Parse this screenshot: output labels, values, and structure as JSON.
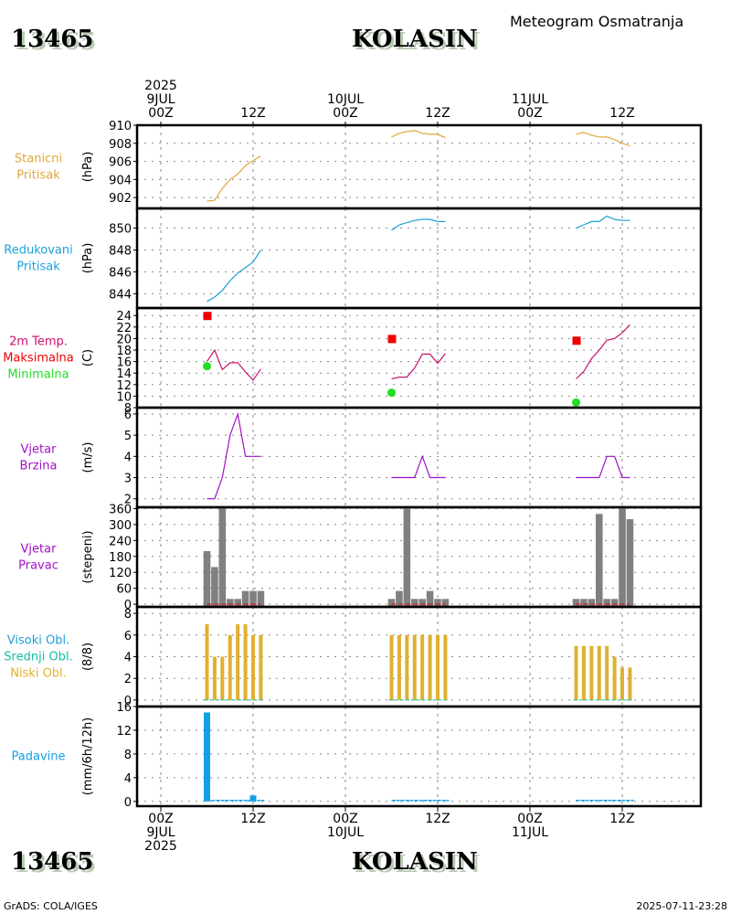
{
  "header": {
    "station_id": "13465",
    "station_name": "KOLASIN",
    "product": "Meteogram Osmatranja"
  },
  "footer": {
    "station_id": "13465",
    "station_name": "KOLASIN",
    "credit": "GrADS: COLA/IGES",
    "timestamp": "2025-07-11-23:28"
  },
  "time_axis": {
    "start": "2025-07-09T00Z",
    "end": "2025-07-12T06Z",
    "top_labels": [
      {
        "hour": 0,
        "lines": [
          "2025",
          "9JUL",
          "00Z"
        ]
      },
      {
        "hour": 12,
        "lines": [
          "12Z"
        ]
      },
      {
        "hour": 24,
        "lines": [
          "10JUL",
          "00Z"
        ]
      },
      {
        "hour": 36,
        "lines": [
          "12Z"
        ]
      },
      {
        "hour": 48,
        "lines": [
          "11JUL",
          "00Z"
        ]
      },
      {
        "hour": 60,
        "lines": [
          "12Z"
        ]
      }
    ],
    "bottom_labels": [
      {
        "hour": 0,
        "lines": [
          "00Z",
          "9JUL",
          "2025"
        ]
      },
      {
        "hour": 12,
        "lines": [
          "12Z"
        ]
      },
      {
        "hour": 24,
        "lines": [
          "00Z",
          "10JUL"
        ]
      },
      {
        "hour": 36,
        "lines": [
          "12Z"
        ]
      },
      {
        "hour": 48,
        "lines": [
          "00Z",
          "11JUL"
        ]
      },
      {
        "hour": 60,
        "lines": [
          "12Z"
        ]
      }
    ]
  },
  "colors": {
    "station_pressure": "#e0a83a",
    "reduced_pressure": "#1ea0d8",
    "temp": "#c8106e",
    "tmax": "#ee0000",
    "tmin": "#22dd22",
    "wind_speed": "#a010c8",
    "wind_dir": "#808080",
    "wind_dir_base": "#ee0000",
    "cloud_high": "#1ea0d8",
    "cloud_mid": "#10c0a0",
    "cloud_low": "#e0b030",
    "precip": "#10a0e8"
  },
  "chart_data": [
    {
      "type": "line",
      "id": "station_pressure",
      "title_lines": [
        "Stanicni",
        "Pritisak"
      ],
      "ylabel": "(hPa)",
      "ylim": [
        900.8,
        910
      ],
      "yticks": [
        902,
        904,
        906,
        908,
        910
      ],
      "color_key": "station_pressure",
      "segments": [
        {
          "hours": [
            6,
            7,
            8,
            9,
            10,
            11,
            12,
            13
          ],
          "values": [
            901.6,
            901.7,
            903.0,
            904.0,
            904.6,
            905.5,
            906.1,
            906.6
          ]
        },
        {
          "hours": [
            30,
            31,
            32,
            33,
            34,
            35,
            36,
            37
          ],
          "values": [
            908.7,
            909.1,
            909.3,
            909.4,
            909.1,
            909.0,
            909.0,
            908.6
          ]
        },
        {
          "hours": [
            54,
            55,
            56,
            57,
            58,
            59,
            60,
            61
          ],
          "values": [
            909.0,
            909.2,
            908.9,
            908.7,
            908.7,
            908.4,
            908.0,
            907.7
          ]
        }
      ]
    },
    {
      "type": "line",
      "id": "reduced_pressure",
      "title_lines": [
        "Redukovani",
        "Pritisak"
      ],
      "ylabel": "(hPa)",
      "ylim": [
        842.7,
        851.8
      ],
      "yticks": [
        844,
        846,
        848,
        850
      ],
      "color_key": "reduced_pressure",
      "segments": [
        {
          "hours": [
            6,
            7,
            8,
            9,
            10,
            11,
            12,
            13
          ],
          "values": [
            843.3,
            843.7,
            844.3,
            845.2,
            845.9,
            846.4,
            846.9,
            848.0
          ]
        },
        {
          "hours": [
            30,
            31,
            32,
            33,
            34,
            35,
            36,
            37
          ],
          "values": [
            849.8,
            850.3,
            850.5,
            850.7,
            850.8,
            850.8,
            850.6,
            850.6
          ]
        },
        {
          "hours": [
            54,
            55,
            56,
            57,
            58,
            59,
            60,
            61
          ],
          "values": [
            850.0,
            850.3,
            850.6,
            850.6,
            851.1,
            850.8,
            850.7,
            850.7
          ]
        }
      ]
    },
    {
      "type": "line",
      "id": "temperature",
      "title_lines": [
        "2m Temp.",
        "Maksimalna",
        "Minimalna"
      ],
      "title_color_keys": [
        "temp",
        "tmax",
        "tmin"
      ],
      "ylabel": "(C)",
      "ylim": [
        8,
        25.3
      ],
      "yticks": [
        8,
        10,
        12,
        14,
        16,
        18,
        20,
        22,
        24
      ],
      "color_key": "temp",
      "segments": [
        {
          "hours": [
            6,
            7,
            8,
            9,
            10,
            11,
            12,
            13
          ],
          "values": [
            16.0,
            18.0,
            14.6,
            15.8,
            15.8,
            14.2,
            12.8,
            14.7
          ]
        },
        {
          "hours": [
            30,
            31,
            32,
            33,
            34,
            35,
            36,
            37
          ],
          "values": [
            13.0,
            13.3,
            13.3,
            14.9,
            17.3,
            17.3,
            15.7,
            17.4
          ]
        },
        {
          "hours": [
            54,
            55,
            56,
            57,
            58,
            59,
            60,
            61
          ],
          "values": [
            13.0,
            14.3,
            16.5,
            18.0,
            19.7,
            20.0,
            21.0,
            22.4
          ]
        }
      ],
      "tmax": [
        {
          "hour": 6,
          "value": 24.0
        },
        {
          "hour": 30,
          "value": 20.0
        },
        {
          "hour": 54,
          "value": 19.7
        }
      ],
      "tmin": [
        {
          "hour": 6,
          "value": 15.2
        },
        {
          "hour": 30,
          "value": 10.6
        },
        {
          "hour": 54,
          "value": 8.9
        }
      ]
    },
    {
      "type": "line",
      "id": "wind_speed",
      "title_lines": [
        "Vjetar",
        "Brzina"
      ],
      "ylabel": "(m/s)",
      "ylim": [
        1.6,
        6.3
      ],
      "yticks": [
        2,
        3,
        4,
        5,
        6
      ],
      "color_key": "wind_speed",
      "segments": [
        {
          "hours": [
            6,
            7,
            8,
            9,
            10,
            11,
            12,
            13
          ],
          "values": [
            2,
            2,
            3,
            5,
            6,
            4,
            4,
            4
          ]
        },
        {
          "hours": [
            30,
            31,
            32,
            33,
            34,
            35,
            36,
            37
          ],
          "values": [
            3,
            3,
            3,
            3,
            4,
            3,
            3,
            3
          ]
        },
        {
          "hours": [
            54,
            55,
            56,
            57,
            58,
            59,
            60,
            61
          ],
          "values": [
            3,
            3,
            3,
            3,
            4,
            4,
            3,
            3
          ]
        }
      ]
    },
    {
      "type": "bar",
      "id": "wind_direction",
      "title_lines": [
        "Vjetar",
        "Pravac"
      ],
      "ylabel": "(stepeni)",
      "ylim": [
        -10,
        365
      ],
      "yticks": [
        0,
        60,
        120,
        180,
        240,
        300,
        360
      ],
      "color_key": "wind_dir",
      "segments": [
        {
          "hours": [
            6,
            7,
            8,
            9,
            10,
            11,
            12,
            13
          ],
          "values": [
            200,
            140,
            360,
            20,
            20,
            50,
            50,
            50
          ]
        },
        {
          "hours": [
            30,
            31,
            32,
            33,
            34,
            35,
            36,
            37
          ],
          "values": [
            20,
            50,
            360,
            20,
            20,
            50,
            20,
            20
          ]
        },
        {
          "hours": [
            54,
            55,
            56,
            57,
            58,
            59,
            60,
            61
          ],
          "values": [
            20,
            20,
            20,
            340,
            20,
            20,
            360,
            320
          ]
        }
      ]
    },
    {
      "type": "bar",
      "id": "clouds",
      "title_lines": [
        "Visoki Obl.",
        "Srednji Obl.",
        "Niski Obl."
      ],
      "title_color_keys": [
        "cloud_high",
        "cloud_mid",
        "cloud_low"
      ],
      "ylabel": "(8/8)",
      "ylim": [
        -0.6,
        8.6
      ],
      "yticks": [
        0,
        2,
        4,
        6,
        8
      ],
      "color_key": "cloud_low",
      "series": [
        {
          "name": "Niski Obl.",
          "segments": [
            {
              "hours": [
                6,
                7,
                8,
                9,
                10,
                11,
                12,
                13
              ],
              "values": [
                7,
                4,
                4,
                6,
                7,
                7,
                6,
                6
              ]
            },
            {
              "hours": [
                30,
                31,
                32,
                33,
                34,
                35,
                36,
                37
              ],
              "values": [
                6,
                6,
                6,
                6,
                6,
                6,
                6,
                6
              ]
            },
            {
              "hours": [
                54,
                55,
                56,
                57,
                58,
                59,
                60,
                61
              ],
              "values": [
                5,
                5,
                5,
                5,
                5,
                4,
                3,
                3
              ]
            }
          ]
        },
        {
          "name": "Srednji Obl.",
          "segments": [
            {
              "hours": [
                6,
                7,
                8,
                9,
                10,
                11,
                12,
                13
              ],
              "values": [
                0,
                0,
                0,
                0,
                0,
                0,
                0,
                0
              ]
            },
            {
              "hours": [
                30,
                31,
                32,
                33,
                34,
                35,
                36,
                37
              ],
              "values": [
                0,
                0,
                0,
                0,
                0,
                0,
                0,
                0
              ]
            },
            {
              "hours": [
                54,
                55,
                56,
                57,
                58,
                59,
                60,
                61
              ],
              "values": [
                0,
                0,
                0,
                0,
                0,
                0,
                0,
                0
              ]
            }
          ]
        }
      ]
    },
    {
      "type": "bar",
      "id": "precipitation",
      "title_lines": [
        "Padavine"
      ],
      "ylabel": "(mm/6h/12h)",
      "ylim": [
        -0.8,
        16
      ],
      "yticks": [
        0,
        4,
        8,
        12,
        16
      ],
      "color_key": "precip",
      "segments": [
        {
          "hours": [
            6,
            7,
            8,
            9,
            10,
            11,
            12,
            13
          ],
          "values": [
            15,
            0,
            0,
            0,
            0,
            0,
            1,
            0
          ]
        },
        {
          "hours": [
            30,
            31,
            32,
            33,
            34,
            35,
            36,
            37
          ],
          "values": [
            0,
            0,
            0,
            0,
            0,
            0,
            0,
            0
          ]
        },
        {
          "hours": [
            54,
            55,
            56,
            57,
            58,
            59,
            60,
            61
          ],
          "values": [
            0,
            0,
            0,
            0,
            0,
            0,
            0,
            0
          ]
        }
      ]
    }
  ]
}
